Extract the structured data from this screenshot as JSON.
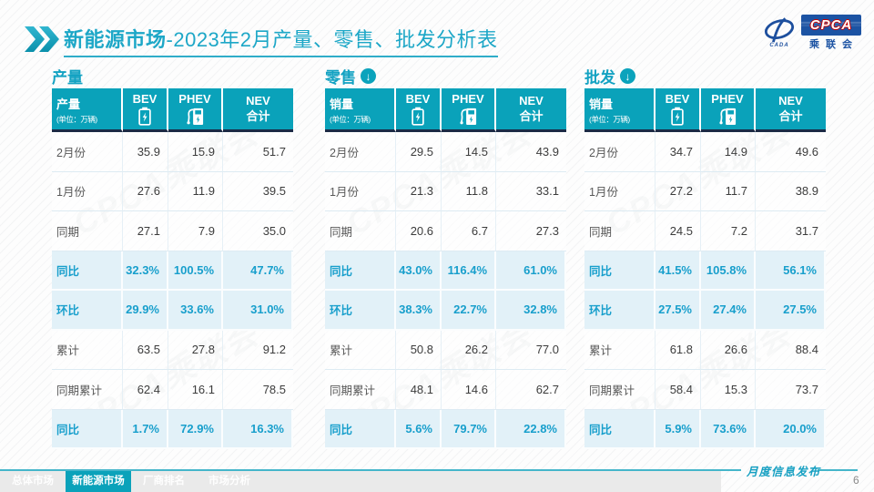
{
  "title": {
    "emphasis": "新能源市场",
    "rest": "-2023年2月产量、零售、批发分析表"
  },
  "logo": {
    "cpca": "CPCA",
    "org_name": "乘联会",
    "swirl_sub": "CADA"
  },
  "watermark": "CPCA乘联会",
  "colors": {
    "accent_teal": "#0aa2ba",
    "title_teal": "#1da7c7",
    "pct_blue": "#189fcc",
    "row_highlight": "#e2f1f8",
    "header_underline": "#1b2b45",
    "logo_blue": "#1c53a3"
  },
  "tables": [
    {
      "id": "production",
      "title": "产量",
      "has_arrow": false,
      "header": {
        "label": "产量",
        "unit": "(单位：万辆)",
        "col_bev": "BEV",
        "col_phev": "PHEV",
        "col_nev1": "NEV",
        "col_nev2": "合计"
      },
      "rows": [
        {
          "label": "2月份",
          "type": "normal",
          "values": [
            "35.9",
            "15.9",
            "51.7"
          ]
        },
        {
          "label": "1月份",
          "type": "normal",
          "values": [
            "27.6",
            "11.9",
            "39.5"
          ]
        },
        {
          "label": "同期",
          "type": "normal",
          "values": [
            "27.1",
            "7.9",
            "35.0"
          ]
        },
        {
          "label": "同比",
          "type": "pct",
          "values": [
            "32.3%",
            "100.5%",
            "47.7%"
          ]
        },
        {
          "label": "环比",
          "type": "pct",
          "values": [
            "29.9%",
            "33.6%",
            "31.0%"
          ]
        },
        {
          "label": "累计",
          "type": "normal",
          "values": [
            "63.5",
            "27.8",
            "91.2"
          ]
        },
        {
          "label": "同期累计",
          "type": "normal",
          "values": [
            "62.4",
            "16.1",
            "78.5"
          ]
        },
        {
          "label": "同比",
          "type": "pct",
          "values": [
            "1.7%",
            "72.9%",
            "16.3%"
          ]
        }
      ]
    },
    {
      "id": "retail",
      "title": "零售",
      "has_arrow": true,
      "header": {
        "label": "销量",
        "unit": "(单位：万辆)",
        "col_bev": "BEV",
        "col_phev": "PHEV",
        "col_nev1": "NEV",
        "col_nev2": "合计"
      },
      "rows": [
        {
          "label": "2月份",
          "type": "normal",
          "values": [
            "29.5",
            "14.5",
            "43.9"
          ]
        },
        {
          "label": "1月份",
          "type": "normal",
          "values": [
            "21.3",
            "11.8",
            "33.1"
          ]
        },
        {
          "label": "同期",
          "type": "normal",
          "values": [
            "20.6",
            "6.7",
            "27.3"
          ]
        },
        {
          "label": "同比",
          "type": "pct",
          "values": [
            "43.0%",
            "116.4%",
            "61.0%"
          ]
        },
        {
          "label": "环比",
          "type": "pct",
          "values": [
            "38.3%",
            "22.7%",
            "32.8%"
          ]
        },
        {
          "label": "累计",
          "type": "normal",
          "values": [
            "50.8",
            "26.2",
            "77.0"
          ]
        },
        {
          "label": "同期累计",
          "type": "normal",
          "values": [
            "48.1",
            "14.6",
            "62.7"
          ]
        },
        {
          "label": "同比",
          "type": "pct",
          "values": [
            "5.6%",
            "79.7%",
            "22.8%"
          ]
        }
      ]
    },
    {
      "id": "wholesale",
      "title": "批发",
      "has_arrow": true,
      "header": {
        "label": "销量",
        "unit": "(单位：万辆)",
        "col_bev": "BEV",
        "col_phev": "PHEV",
        "col_nev1": "NEV",
        "col_nev2": "合计"
      },
      "rows": [
        {
          "label": "2月份",
          "type": "normal",
          "values": [
            "34.7",
            "14.9",
            "49.6"
          ]
        },
        {
          "label": "1月份",
          "type": "normal",
          "values": [
            "27.2",
            "11.7",
            "38.9"
          ]
        },
        {
          "label": "同期",
          "type": "normal",
          "values": [
            "24.5",
            "7.2",
            "31.7"
          ]
        },
        {
          "label": "同比",
          "type": "pct",
          "values": [
            "41.5%",
            "105.8%",
            "56.1%"
          ]
        },
        {
          "label": "环比",
          "type": "pct",
          "values": [
            "27.5%",
            "27.4%",
            "27.5%"
          ]
        },
        {
          "label": "累计",
          "type": "normal",
          "values": [
            "61.8",
            "26.6",
            "88.4"
          ]
        },
        {
          "label": "同期累计",
          "type": "normal",
          "values": [
            "58.4",
            "15.3",
            "73.7"
          ]
        },
        {
          "label": "同比",
          "type": "pct",
          "values": [
            "5.9%",
            "73.6%",
            "20.0%"
          ]
        }
      ]
    }
  ],
  "footer": {
    "tabs": [
      {
        "label": "总体市场",
        "active": false
      },
      {
        "label": "新能源市场",
        "active": true
      },
      {
        "label": "厂商排名",
        "active": false
      },
      {
        "label": "市场分析",
        "active": false
      }
    ],
    "note": "月度信息发布",
    "page": "6"
  }
}
